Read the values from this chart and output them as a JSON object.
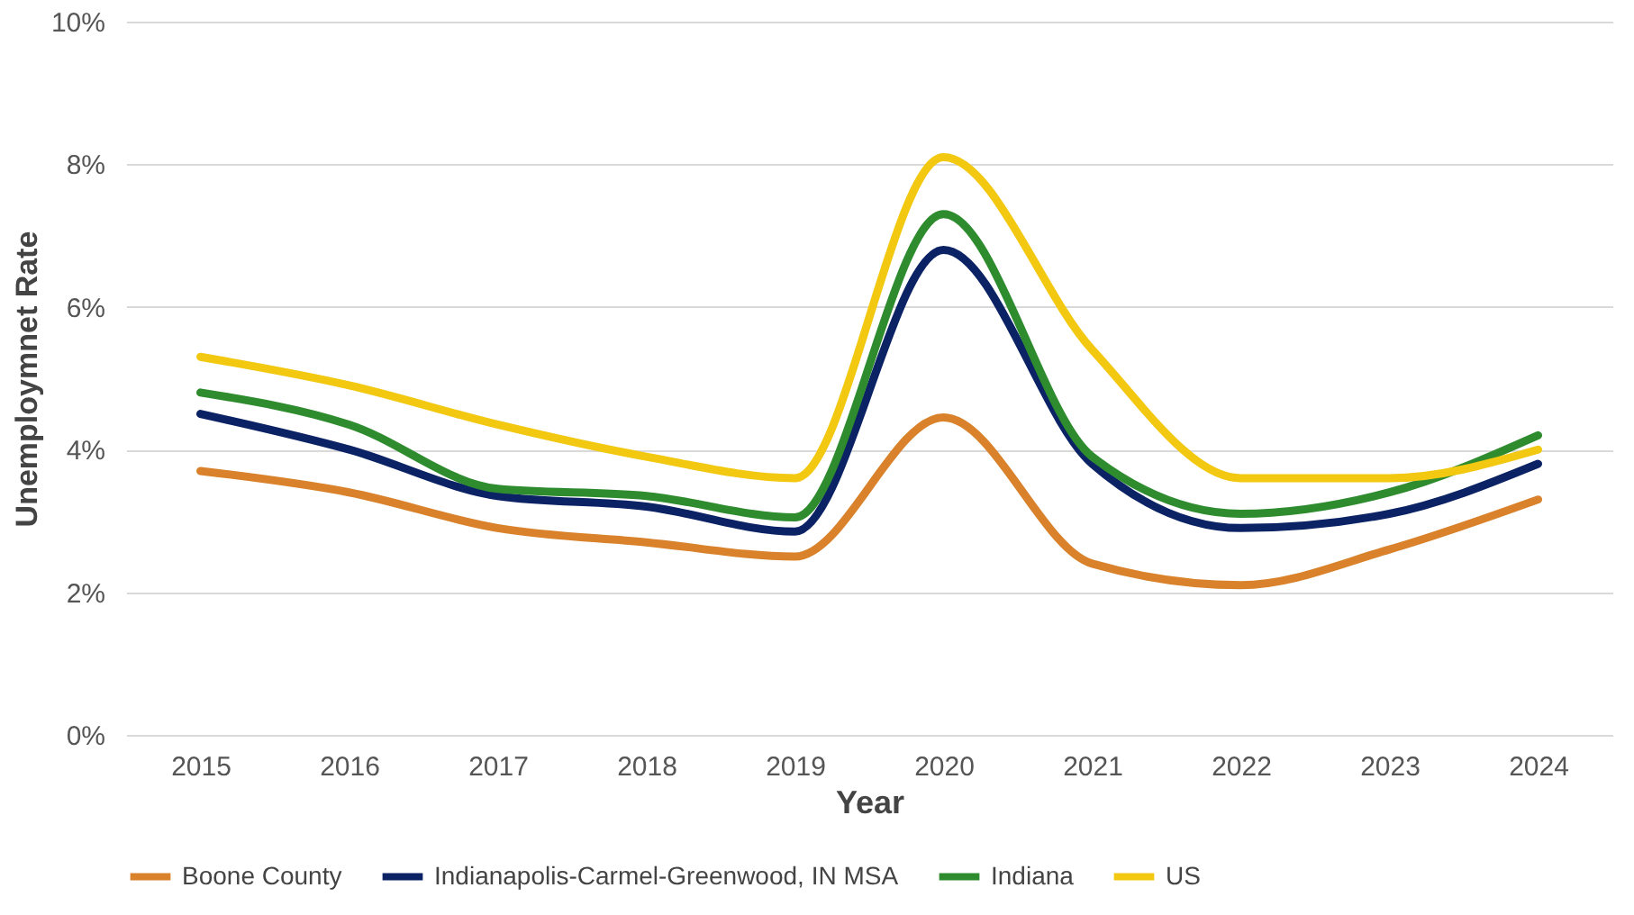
{
  "chart_data": {
    "type": "line",
    "xlabel": "Year",
    "ylabel": "Unemploymnet Rate",
    "categories": [
      "2015",
      "2016",
      "2017",
      "2018",
      "2019",
      "2020",
      "2021",
      "2022",
      "2023",
      "2024"
    ],
    "series": [
      {
        "name": "Boone County",
        "color": "#d9822b",
        "values": [
          3.7,
          3.4,
          2.9,
          2.7,
          2.5,
          4.45,
          2.4,
          2.1,
          2.6,
          3.3
        ]
      },
      {
        "name": "Indianapolis-Carmel-Greenwood, IN MSA",
        "color": "#0b2265",
        "values": [
          4.5,
          4.0,
          3.35,
          3.2,
          2.85,
          6.8,
          3.8,
          2.9,
          3.1,
          3.8
        ]
      },
      {
        "name": "Indiana",
        "color": "#2e8b2e",
        "values": [
          4.8,
          4.35,
          3.45,
          3.35,
          3.05,
          7.3,
          3.9,
          3.1,
          3.4,
          4.2
        ]
      },
      {
        "name": "US",
        "color": "#f2c811",
        "values": [
          5.3,
          4.9,
          4.35,
          3.9,
          3.6,
          8.1,
          5.4,
          3.6,
          3.6,
          4.0
        ]
      }
    ],
    "ylim": [
      0,
      10
    ],
    "yticks": [
      {
        "value": 0,
        "label": "0%"
      },
      {
        "value": 2,
        "label": "2%"
      },
      {
        "value": 4,
        "label": "4%"
      },
      {
        "value": 6,
        "label": "6%"
      },
      {
        "value": 8,
        "label": "8%"
      },
      {
        "value": 10,
        "label": "10%"
      }
    ],
    "grid": "y",
    "legend": "bottom",
    "marker": "none",
    "line_style": "solid"
  }
}
